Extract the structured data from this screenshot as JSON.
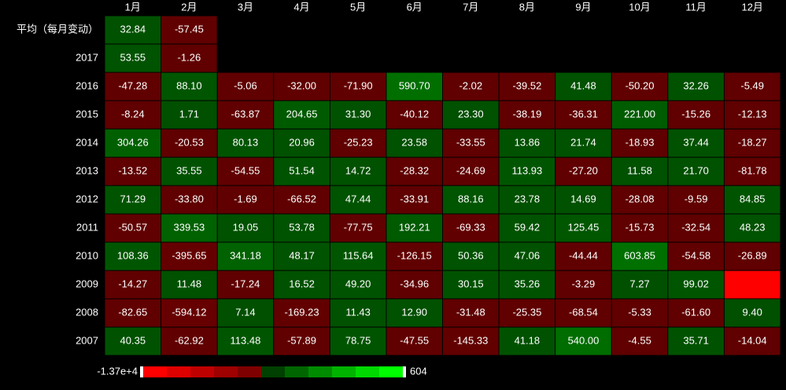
{
  "chart_data": {
    "type": "heatmap",
    "x_categories": [
      "1月",
      "2月",
      "3月",
      "4月",
      "5月",
      "6月",
      "7月",
      "8月",
      "9月",
      "10月",
      "11月",
      "12月"
    ],
    "series": [
      {
        "name": "平均（每月变动）",
        "values": [
          32.84,
          -57.45,
          null,
          null,
          null,
          null,
          null,
          null,
          null,
          null,
          null,
          null
        ],
        "value_labels": [
          "32.84",
          "-57.45",
          null,
          null,
          null,
          null,
          null,
          null,
          null,
          null,
          null,
          null
        ]
      },
      {
        "name": "2017",
        "values": [
          53.55,
          -1.26,
          null,
          null,
          null,
          null,
          null,
          null,
          null,
          null,
          null,
          null
        ],
        "value_labels": [
          "53.55",
          "-1.26",
          null,
          null,
          null,
          null,
          null,
          null,
          null,
          null,
          null,
          null
        ]
      },
      {
        "name": "2016",
        "values": [
          -47.28,
          88.1,
          -5.06,
          -32.0,
          -71.9,
          590.7,
          -2.02,
          -39.52,
          41.48,
          -50.2,
          32.26,
          -5.49
        ],
        "value_labels": [
          "-47.28",
          "88.10",
          "-5.06",
          "-32.00",
          "-71.90",
          "590.70",
          "-2.02",
          "-39.52",
          "41.48",
          "-50.20",
          "32.26",
          "-5.49"
        ]
      },
      {
        "name": "2015",
        "values": [
          -8.24,
          1.71,
          -63.87,
          204.65,
          31.3,
          -40.12,
          23.3,
          -38.19,
          -36.31,
          221.0,
          -15.26,
          -12.13
        ],
        "value_labels": [
          "-8.24",
          "1.71",
          "-63.87",
          "204.65",
          "31.30",
          "-40.12",
          "23.30",
          "-38.19",
          "-36.31",
          "221.00",
          "-15.26",
          "-12.13"
        ]
      },
      {
        "name": "2014",
        "values": [
          304.26,
          -20.53,
          80.13,
          20.96,
          -25.23,
          23.58,
          -33.55,
          13.86,
          21.74,
          -18.93,
          37.44,
          -18.27
        ],
        "value_labels": [
          "304.26",
          "-20.53",
          "80.13",
          "20.96",
          "-25.23",
          "23.58",
          "-33.55",
          "13.86",
          "21.74",
          "-18.93",
          "37.44",
          "-18.27"
        ]
      },
      {
        "name": "2013",
        "values": [
          -13.52,
          35.55,
          -54.55,
          51.54,
          14.72,
          -28.32,
          -24.69,
          113.93,
          -27.2,
          11.58,
          21.7,
          -81.78
        ],
        "value_labels": [
          "-13.52",
          "35.55",
          "-54.55",
          "51.54",
          "14.72",
          "-28.32",
          "-24.69",
          "113.93",
          "-27.20",
          "11.58",
          "21.70",
          "-81.78"
        ]
      },
      {
        "name": "2012",
        "values": [
          71.29,
          -33.8,
          -1.69,
          -66.52,
          47.44,
          -33.91,
          88.16,
          23.78,
          14.69,
          -28.08,
          -9.59,
          84.85
        ],
        "value_labels": [
          "71.29",
          "-33.80",
          "-1.69",
          "-66.52",
          "47.44",
          "-33.91",
          "88.16",
          "23.78",
          "14.69",
          "-28.08",
          "-9.59",
          "84.85"
        ]
      },
      {
        "name": "2011",
        "values": [
          -50.57,
          339.53,
          19.05,
          53.78,
          -77.75,
          192.21,
          -69.33,
          59.42,
          125.45,
          -15.73,
          -32.54,
          48.23
        ],
        "value_labels": [
          "-50.57",
          "339.53",
          "19.05",
          "53.78",
          "-77.75",
          "192.21",
          "-69.33",
          "59.42",
          "125.45",
          "-15.73",
          "-32.54",
          "48.23"
        ]
      },
      {
        "name": "2010",
        "values": [
          108.36,
          -395.65,
          341.18,
          48.17,
          115.64,
          -126.15,
          50.36,
          47.06,
          -44.44,
          603.85,
          -54.58,
          -26.89
        ],
        "value_labels": [
          "108.36",
          "-395.65",
          "341.18",
          "48.17",
          "115.64",
          "-126.15",
          "50.36",
          "47.06",
          "-44.44",
          "603.85",
          "-54.58",
          "-26.89"
        ]
      },
      {
        "name": "2009",
        "values": [
          -14.27,
          11.48,
          -17.24,
          16.52,
          49.2,
          -34.96,
          30.15,
          35.26,
          -3.29,
          7.27,
          99.02,
          -13700
        ],
        "value_labels": [
          "-14.27",
          "11.48",
          "-17.24",
          "16.52",
          "49.20",
          "-34.96",
          "30.15",
          "35.26",
          "-3.29",
          "7.27",
          "99.02",
          null
        ]
      },
      {
        "name": "2008",
        "values": [
          -82.65,
          -594.12,
          7.14,
          -169.23,
          11.43,
          12.9,
          -31.48,
          -25.35,
          -68.54,
          -5.33,
          -61.6,
          9.4
        ],
        "value_labels": [
          "-82.65",
          "-594.12",
          "7.14",
          "-169.23",
          "11.43",
          "12.90",
          "-31.48",
          "-25.35",
          "-68.54",
          "-5.33",
          "-61.60",
          "9.40"
        ]
      },
      {
        "name": "2007",
        "values": [
          40.35,
          -62.92,
          113.48,
          -57.89,
          78.75,
          -47.55,
          -145.33,
          41.18,
          540.0,
          -4.55,
          35.71,
          -14.04
        ],
        "value_labels": [
          "40.35",
          "-62.92",
          "113.48",
          "-57.89",
          "78.75",
          "-47.55",
          "-145.33",
          "41.18",
          "540.00",
          "-4.55",
          "35.71",
          "-14.04"
        ]
      }
    ],
    "visual_map": {
      "min": {
        "value": -13700,
        "label": "-1.37e+4"
      },
      "max": 604
    }
  }
}
